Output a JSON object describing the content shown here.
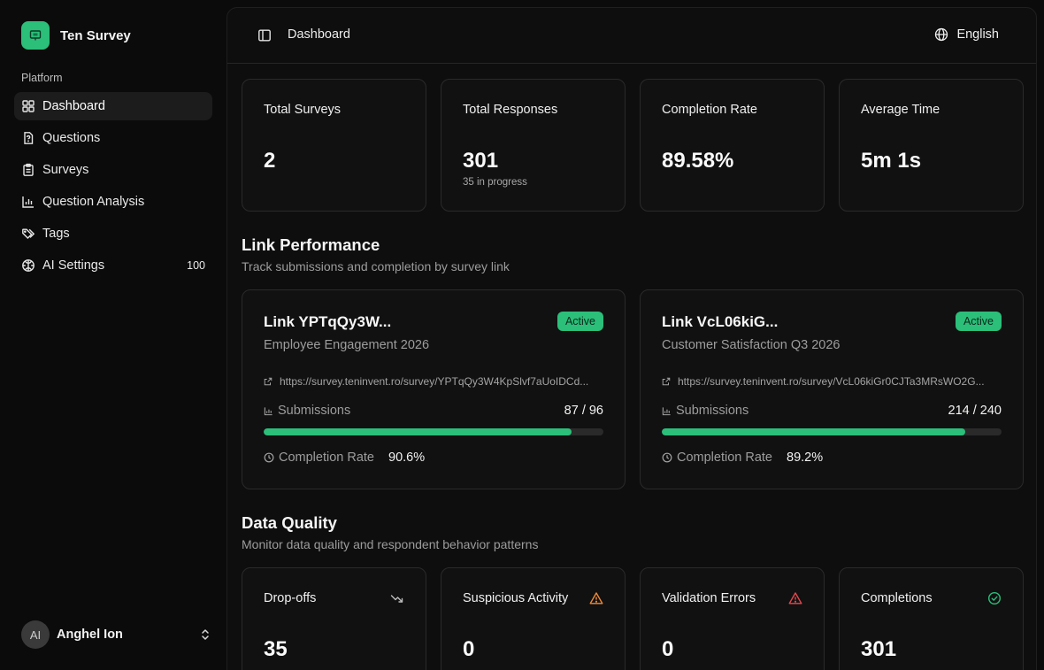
{
  "app": {
    "name": "Ten Survey"
  },
  "sidebar": {
    "section_label": "Platform",
    "items": [
      {
        "label": "Dashboard",
        "icon": "layout-grid-icon",
        "active": true
      },
      {
        "label": "Questions",
        "icon": "file-question-icon"
      },
      {
        "label": "Surveys",
        "icon": "clipboard-list-icon"
      },
      {
        "label": "Question Analysis",
        "icon": "bar-chart-icon"
      },
      {
        "label": "Tags",
        "icon": "tags-icon"
      },
      {
        "label": "AI Settings",
        "icon": "brain-icon",
        "badge": "100"
      }
    ]
  },
  "user": {
    "initials": "AI",
    "name": "Anghel Ion"
  },
  "header": {
    "breadcrumb": "Dashboard",
    "language": "English"
  },
  "stats": [
    {
      "title": "Total Surveys",
      "value": "2",
      "sub": ""
    },
    {
      "title": "Total Responses",
      "value": "301",
      "sub": "35 in progress"
    },
    {
      "title": "Completion Rate",
      "value": "89.58%",
      "sub": ""
    },
    {
      "title": "Average Time",
      "value": "5m 1s",
      "sub": ""
    }
  ],
  "link_performance": {
    "title": "Link Performance",
    "description": "Track submissions and completion by survey link",
    "submissions_label": "Submissions",
    "completion_label": "Completion Rate",
    "links": [
      {
        "title": "Link YPTqQy3W...",
        "survey": "Employee Engagement 2026",
        "status": "Active",
        "url": "https://survey.teninvent.ro/survey/YPTqQy3W4KpSlvf7aUoIDCd...",
        "submissions": "87 / 96",
        "progress": 0.906,
        "completion_rate": "90.6%"
      },
      {
        "title": "Link VcL06kiG...",
        "survey": "Customer Satisfaction Q3 2026",
        "status": "Active",
        "url": "https://survey.teninvent.ro/survey/VcL06kiGr0CJTa3MRsWO2G...",
        "submissions": "214 / 240",
        "progress": 0.892,
        "completion_rate": "89.2%"
      }
    ]
  },
  "data_quality": {
    "title": "Data Quality",
    "description": "Monitor data quality and respondent behavior patterns",
    "cards": [
      {
        "title": "Drop-offs",
        "value": "35",
        "icon": "trending-down-icon",
        "color": "#bdbdbd"
      },
      {
        "title": "Suspicious Activity",
        "value": "0",
        "icon": "alert-triangle-icon",
        "color": "#f08a3a"
      },
      {
        "title": "Validation Errors",
        "value": "0",
        "icon": "alert-triangle-icon",
        "color": "#e5484d"
      },
      {
        "title": "Completions",
        "value": "301",
        "icon": "check-circle-icon",
        "color": "#2bbf7a"
      }
    ]
  },
  "colors": {
    "accent": "#2bbf7a",
    "background": "#0b0b0b"
  }
}
